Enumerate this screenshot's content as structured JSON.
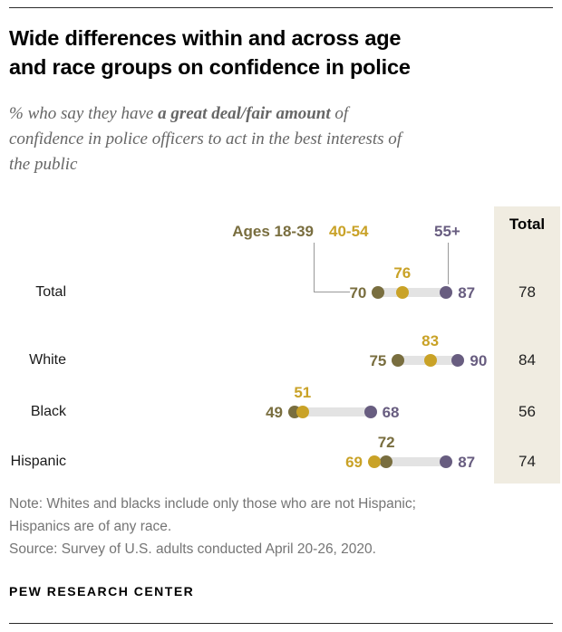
{
  "header": {
    "title_line1": "Wide differences within and across age",
    "title_line2": "and race groups on confidence in police",
    "subtitle_line1_prefix": "% who say they have ",
    "subtitle_line1_bold": "a great deal/fair amount",
    "subtitle_line1_suffix": " of",
    "subtitle_line2": "confidence in police officers to act in the best interests of",
    "subtitle_line3": "the public"
  },
  "chart_data": {
    "type": "scatter",
    "variant": "dot-plot-dumbbell",
    "title": "Wide differences within and across age and race groups on confidence in police",
    "subtitle": "% who say they have a great deal/fair amount of confidence in police officers to act in the best interests of the public",
    "categories": [
      "Total",
      "White",
      "Black",
      "Hispanic"
    ],
    "series": [
      {
        "name": "Ages 18-39",
        "color": "#796e3f",
        "values": [
          70,
          75,
          49,
          72
        ]
      },
      {
        "name": "40-54",
        "color": "#c9a227",
        "values": [
          76,
          83,
          51,
          69
        ]
      },
      {
        "name": "55+",
        "color": "#685d80",
        "values": [
          87,
          90,
          68,
          87
        ]
      }
    ],
    "totals": {
      "label": "Total",
      "values": [
        78,
        84,
        56,
        74
      ]
    },
    "xlim": [
      45,
      95
    ],
    "legend_position": "top",
    "grid": false,
    "track_color": "#e3e3e3",
    "total_column_bg": "#f0ece1"
  },
  "notes": {
    "line1": "Note: Whites and blacks include only those who are not Hispanic;",
    "line2": "Hispanics are of any race.",
    "source": "Source: Survey of U.S. adults conducted April 20-26, 2020."
  },
  "footer": {
    "brand": "PEW RESEARCH CENTER"
  }
}
